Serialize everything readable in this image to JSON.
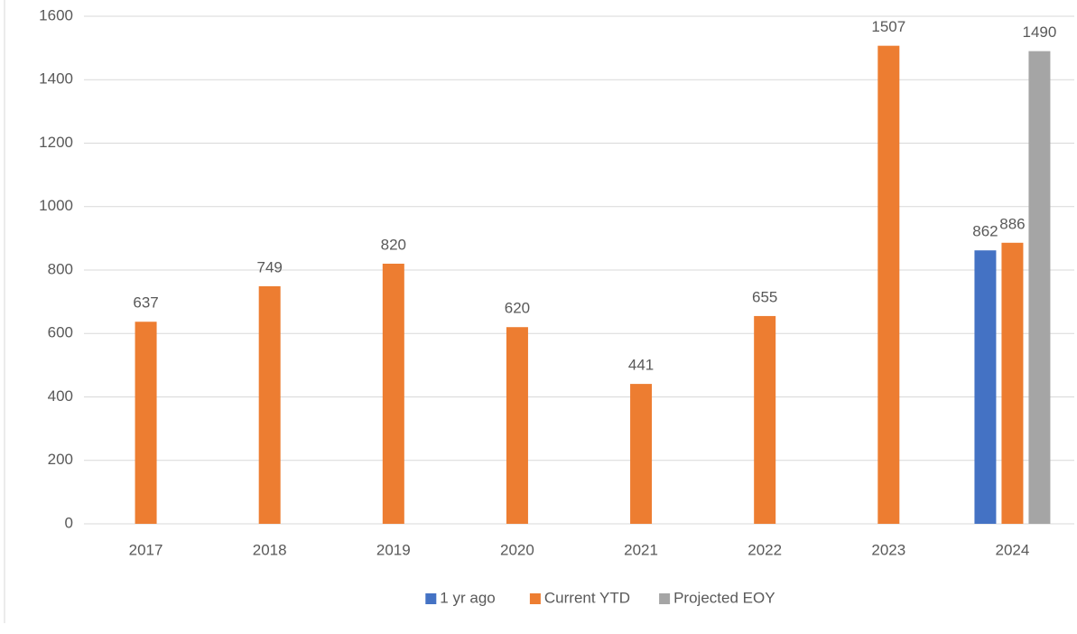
{
  "chart_data": {
    "type": "bar",
    "categories": [
      "2017",
      "2018",
      "2019",
      "2020",
      "2021",
      "2022",
      "2023",
      "2024"
    ],
    "series": [
      {
        "name": "1 yr ago",
        "color": "#4472c4",
        "values": [
          null,
          null,
          null,
          null,
          null,
          null,
          null,
          862
        ]
      },
      {
        "name": "Current YTD",
        "color": "#ed7d31",
        "values": [
          637,
          749,
          820,
          620,
          441,
          655,
          1507,
          886
        ]
      },
      {
        "name": "Projected EOY",
        "color": "#a5a5a5",
        "values": [
          null,
          null,
          null,
          null,
          null,
          null,
          null,
          1490
        ]
      }
    ],
    "ylim": [
      0,
      1600
    ],
    "yticks": [
      0,
      200,
      400,
      600,
      800,
      1000,
      1200,
      1400,
      1600
    ],
    "grid": true,
    "legend": "bottom"
  }
}
